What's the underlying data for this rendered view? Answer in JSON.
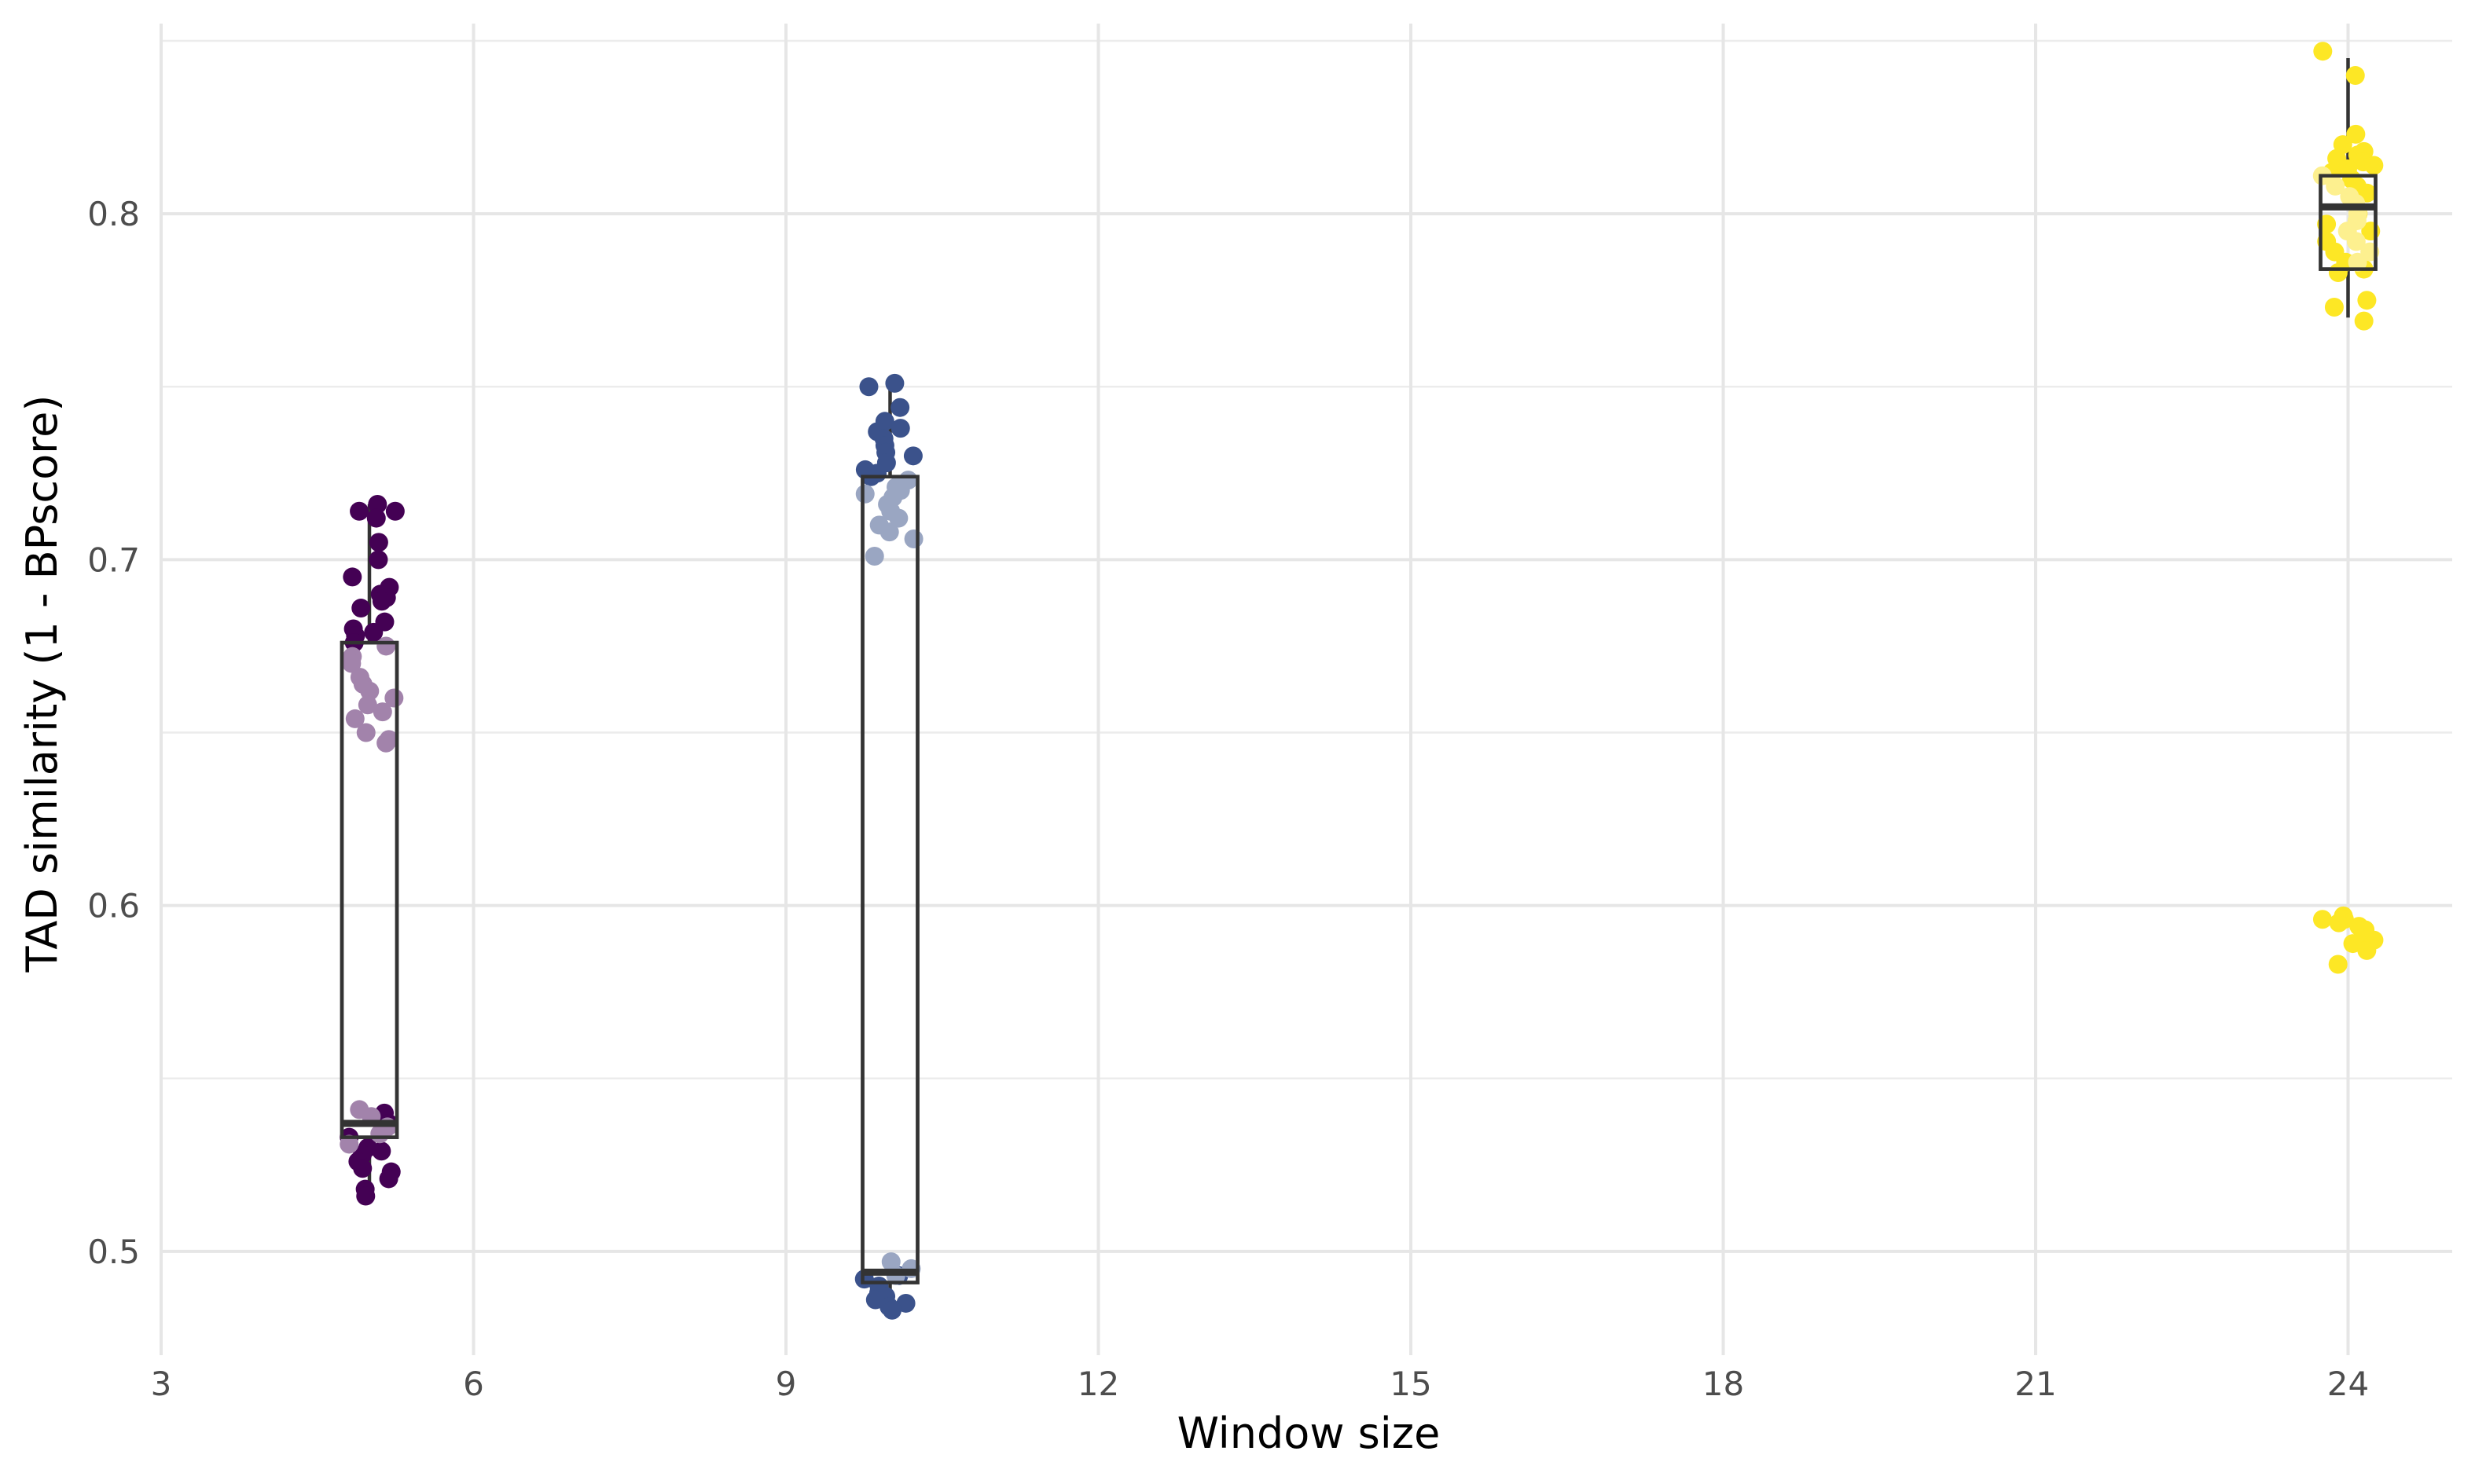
{
  "chart_data": {
    "type": "boxplot+jitter",
    "title": "",
    "xlabel": "Window size",
    "ylabel": "TAD similarity (1 - BPscore)",
    "xlim": [
      3,
      25
    ],
    "ylim": [
      0.47,
      0.855
    ],
    "x_ticks": [
      3,
      6,
      9,
      12,
      15,
      18,
      21,
      24
    ],
    "y_ticks": [
      0.5,
      0.6,
      0.7,
      0.8
    ],
    "grid": true,
    "legend": "none",
    "boxes": [
      {
        "x": 5,
        "color": "#440154",
        "fill": "#a283ab",
        "min": 0.518,
        "q1": 0.533,
        "median": 0.537,
        "q3": 0.676,
        "max": 0.716
      },
      {
        "x": 10,
        "color": "#3b528b",
        "fill": "#9aa6c2",
        "min": 0.484,
        "q1": 0.491,
        "median": 0.494,
        "q3": 0.724,
        "max": 0.75
      },
      {
        "x": 24,
        "color": "#fde725",
        "fill": "#fdf08f",
        "min": 0.77,
        "q1": 0.784,
        "median": 0.802,
        "q3": 0.811,
        "max": 0.845
      }
    ],
    "points": [
      {
        "x": 5,
        "color": "#440154",
        "values": [
          0.716,
          0.714,
          0.712,
          0.714,
          0.705,
          0.7,
          0.695,
          0.692,
          0.69,
          0.689,
          0.688,
          0.686,
          0.682,
          0.68,
          0.679,
          0.678,
          0.676,
          0.54,
          0.537,
          0.536,
          0.533,
          0.53,
          0.529,
          0.528,
          0.526,
          0.524,
          0.523,
          0.521,
          0.518,
          0.516
        ]
      },
      {
        "x": 5,
        "color": "#a283ab",
        "values": [
          0.675,
          0.672,
          0.67,
          0.666,
          0.664,
          0.662,
          0.66,
          0.658,
          0.656,
          0.654,
          0.65,
          0.648,
          0.647,
          0.541,
          0.539,
          0.536,
          0.534,
          0.531
        ]
      },
      {
        "x": 10,
        "color": "#3b528b",
        "values": [
          0.751,
          0.75,
          0.744,
          0.74,
          0.738,
          0.737,
          0.735,
          0.733,
          0.731,
          0.73,
          0.728,
          0.726,
          0.725,
          0.724,
          0.493,
          0.492,
          0.49,
          0.488,
          0.487,
          0.486,
          0.485,
          0.484,
          0.483
        ]
      },
      {
        "x": 10,
        "color": "#9aa6c2",
        "values": [
          0.723,
          0.721,
          0.72,
          0.719,
          0.718,
          0.716,
          0.714,
          0.712,
          0.71,
          0.708,
          0.706,
          0.701,
          0.497,
          0.495,
          0.493
        ]
      },
      {
        "x": 24,
        "color": "#fde725",
        "values": [
          0.847,
          0.84,
          0.823,
          0.82,
          0.818,
          0.817,
          0.816,
          0.815,
          0.814,
          0.813,
          0.812,
          0.81,
          0.808,
          0.806,
          0.804,
          0.8,
          0.797,
          0.795,
          0.792,
          0.789,
          0.786,
          0.784,
          0.783,
          0.775,
          0.773,
          0.769,
          0.597,
          0.596,
          0.596,
          0.595,
          0.594,
          0.593,
          0.592,
          0.59,
          0.589,
          0.587,
          0.583
        ]
      },
      {
        "x": 24,
        "color": "#fdf08f",
        "values": [
          0.811,
          0.808,
          0.805,
          0.803,
          0.8,
          0.798,
          0.795,
          0.792,
          0.789,
          0.786
        ]
      }
    ]
  }
}
